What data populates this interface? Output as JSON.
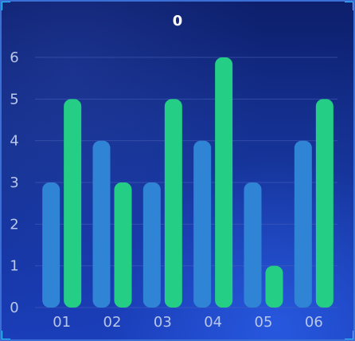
{
  "chart_data": {
    "type": "bar",
    "title": "0",
    "categories": [
      "01",
      "02",
      "03",
      "04",
      "05",
      "06"
    ],
    "series": [
      {
        "values": [
          3,
          4,
          3,
          4,
          3,
          4
        ],
        "color": "#2f84d6"
      },
      {
        "values": [
          5,
          3,
          5,
          6,
          1,
          5
        ],
        "color": "#24cf85"
      }
    ],
    "ylim": [
      0,
      6
    ],
    "yticks": [
      "0",
      "1",
      "2",
      "3",
      "4",
      "5",
      "6"
    ],
    "grid": true,
    "colors": {
      "background": "#14308f",
      "grid": "#4a62b8",
      "axis_text": "#b9c7ea",
      "corner_accent": "#27c3ff"
    }
  }
}
